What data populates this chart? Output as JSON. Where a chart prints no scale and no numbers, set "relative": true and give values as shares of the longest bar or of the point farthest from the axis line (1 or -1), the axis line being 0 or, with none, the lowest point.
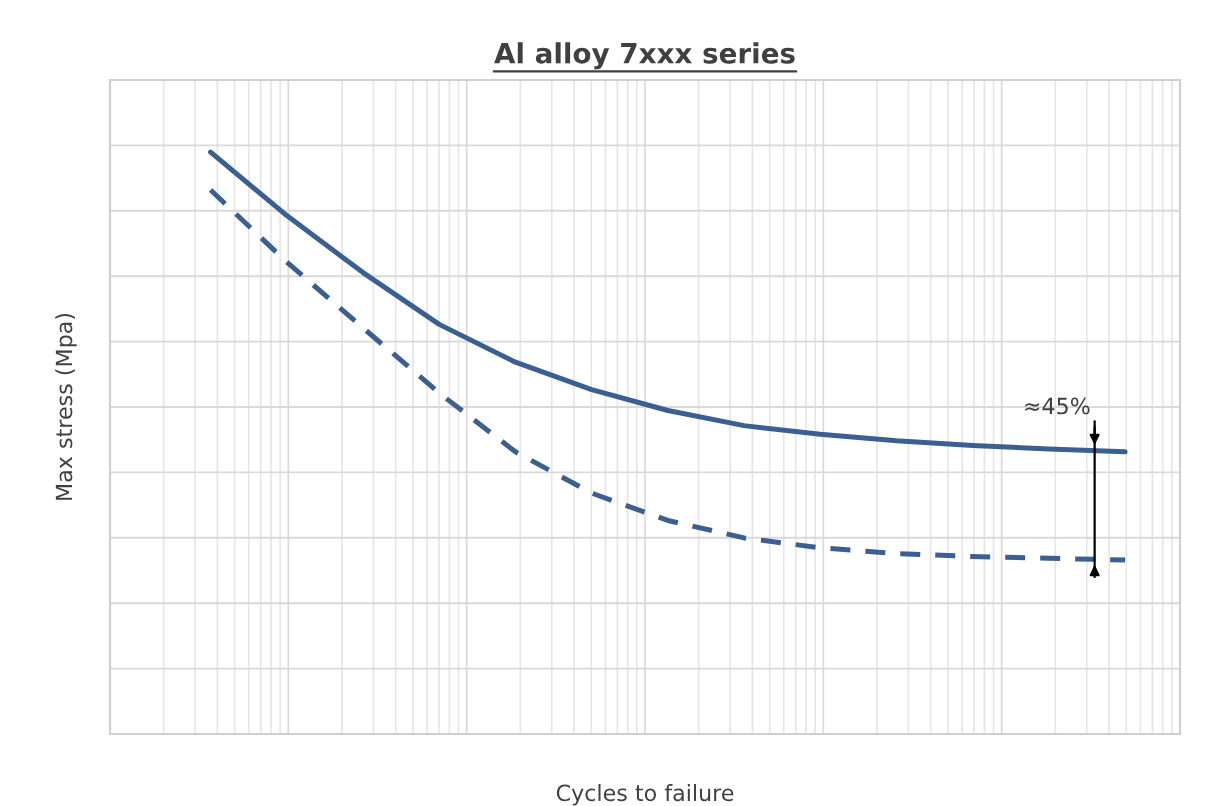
{
  "chart_data": {
    "type": "line",
    "title": "Al alloy 7xxx series",
    "xlabel": "Cycles to failure",
    "ylabel": "Max stress (Mpa)",
    "relative": true,
    "grid": true,
    "categories": [
      null,
      null,
      null,
      null,
      null,
      null,
      null,
      null,
      null,
      null,
      null,
      null,
      null
    ],
    "series": [
      {
        "color": "#3b5f91",
        "line_style": "solid",
        "values": [
          1.0,
          0.891,
          0.793,
          0.704,
          0.639,
          0.592,
          0.556,
          0.53,
          0.515,
          0.504,
          0.496,
          0.49,
          0.485
        ]
      },
      {
        "color": "#3b5f91",
        "line_style": "dashed",
        "values": [
          0.935,
          0.811,
          0.698,
          0.586,
          0.485,
          0.414,
          0.367,
          0.337,
          0.32,
          0.31,
          0.305,
          0.302,
          0.299
        ]
      }
    ],
    "annotations": [
      "≈45%"
    ]
  }
}
